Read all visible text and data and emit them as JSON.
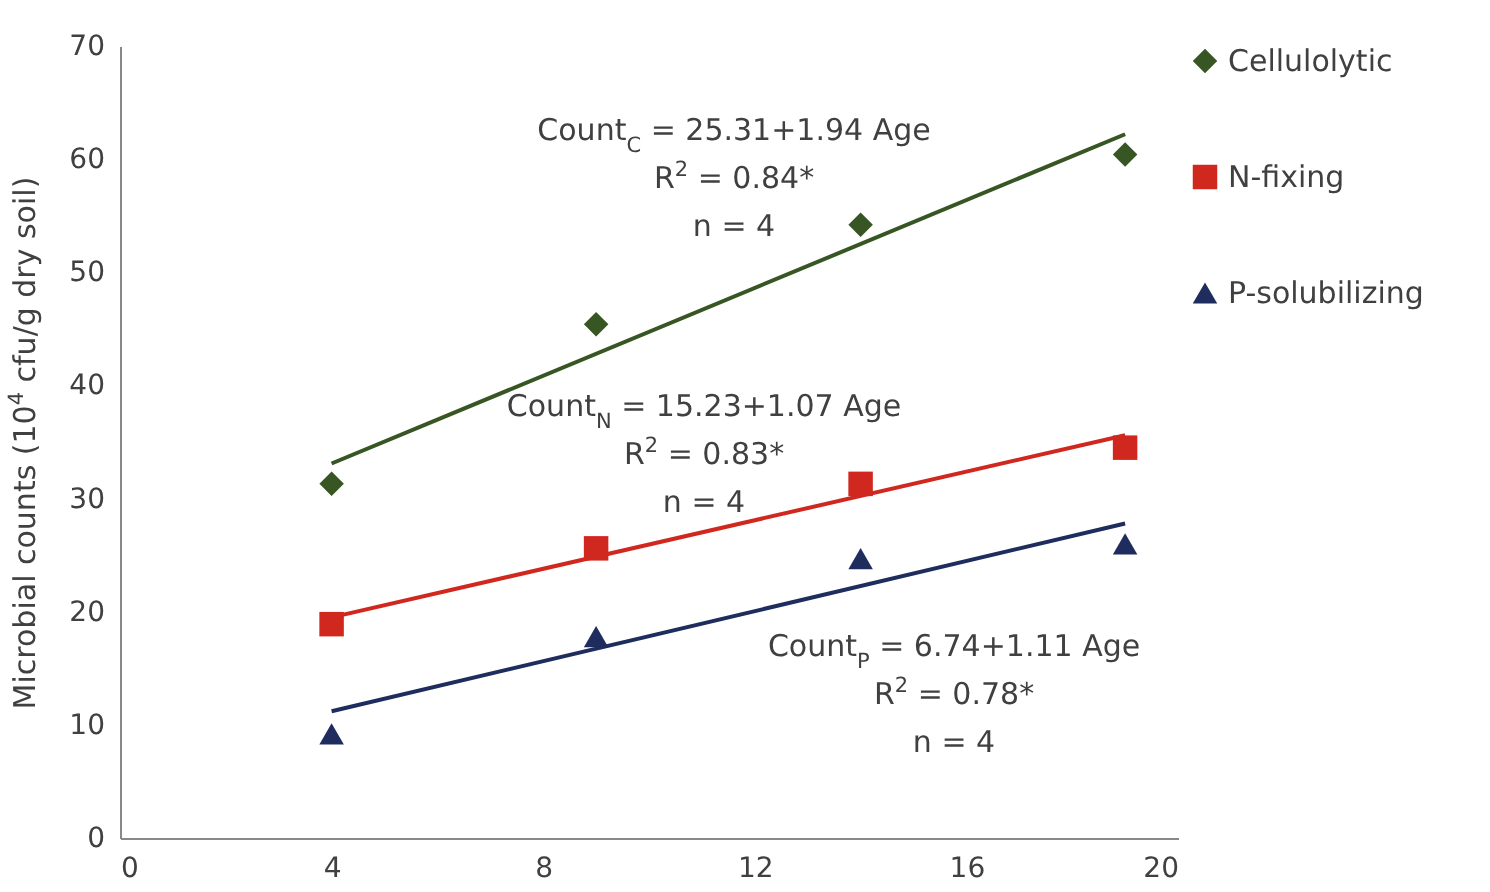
{
  "chart_data": {
    "type": "scatter",
    "ylabel": "Microbial counts (10$^{4}$ cfu/g dry soil)",
    "xlim": [
      0,
      20
    ],
    "xticks": [
      0,
      4,
      8,
      12,
      16,
      20
    ],
    "ylim": [
      0,
      70
    ],
    "yticks": [
      0,
      10,
      20,
      30,
      40,
      50,
      60,
      70
    ],
    "grid": false,
    "legend": "right",
    "series": [
      {
        "name": "Cellulolytic",
        "color": "#375623",
        "marker": "diamond",
        "x": [
          4,
          9,
          14,
          19
        ],
        "values": [
          31.3,
          45.4,
          54.2,
          60.4
        ]
      },
      {
        "name": "N-fixing",
        "color": "#d0281f",
        "marker": "square",
        "x": [
          4,
          9,
          14,
          19
        ],
        "values": [
          18.9,
          25.6,
          31.3,
          34.5
        ]
      },
      {
        "name": "P-solubilizing",
        "color": "#1f2d5e",
        "marker": "triangle",
        "x": [
          4,
          9,
          14,
          19
        ],
        "values": [
          9.2,
          17.8,
          24.7,
          26.0
        ]
      },
      {
        "type": "line",
        "color": "#375623",
        "x": [
          4,
          19
        ],
        "values": [
          33.1,
          62.2
        ]
      },
      {
        "type": "line",
        "color": "#d0281f",
        "x": [
          4,
          19
        ],
        "values": [
          19.5,
          35.6
        ]
      },
      {
        "type": "line",
        "color": "#1f2d5e",
        "x": [
          4,
          19
        ],
        "values": [
          11.2,
          27.8
        ]
      }
    ],
    "annotations": [
      "Count$_{C}$ = 25.31+1.94 Age",
      "R$^{2}$ = 0.84*",
      "n = 4",
      "Count$_{N}$ = 15.23+1.07 Age",
      "R$^{2}$ = 0.83*",
      "n = 4",
      "Count$_{P}$ = 6.74+1.11 Age",
      "R$^{2}$ = 0.78*",
      "n = 4"
    ]
  }
}
